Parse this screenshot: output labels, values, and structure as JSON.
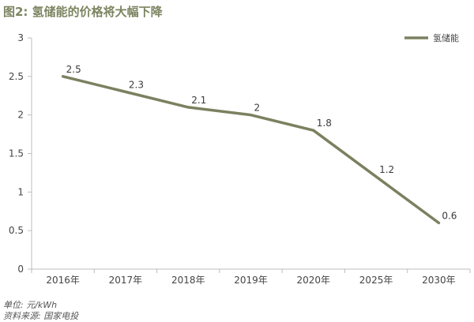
{
  "title": "图2: 氢储能的价格将大幅下降",
  "footer": {
    "unit": "单位: 元/kWh",
    "source": "资料来源: 国家电投"
  },
  "chart_data": {
    "type": "line",
    "categories": [
      "2016年",
      "2017年",
      "2018年",
      "2019年",
      "2020年",
      "2025年",
      "2030年"
    ],
    "series": [
      {
        "name": "氢储能",
        "values": [
          2.5,
          2.3,
          2.1,
          2,
          1.8,
          1.2,
          0.6
        ],
        "labels": [
          "2.5",
          "2.3",
          "2.1",
          "2",
          "1.8",
          "1.2",
          "0.6"
        ],
        "color": "#7b8160"
      }
    ],
    "ylim": [
      0,
      3
    ],
    "yticks": [
      "0",
      "0.5",
      "1",
      "1.5",
      "2",
      "2.5",
      "3"
    ],
    "grid": false,
    "legend": "top-right"
  }
}
